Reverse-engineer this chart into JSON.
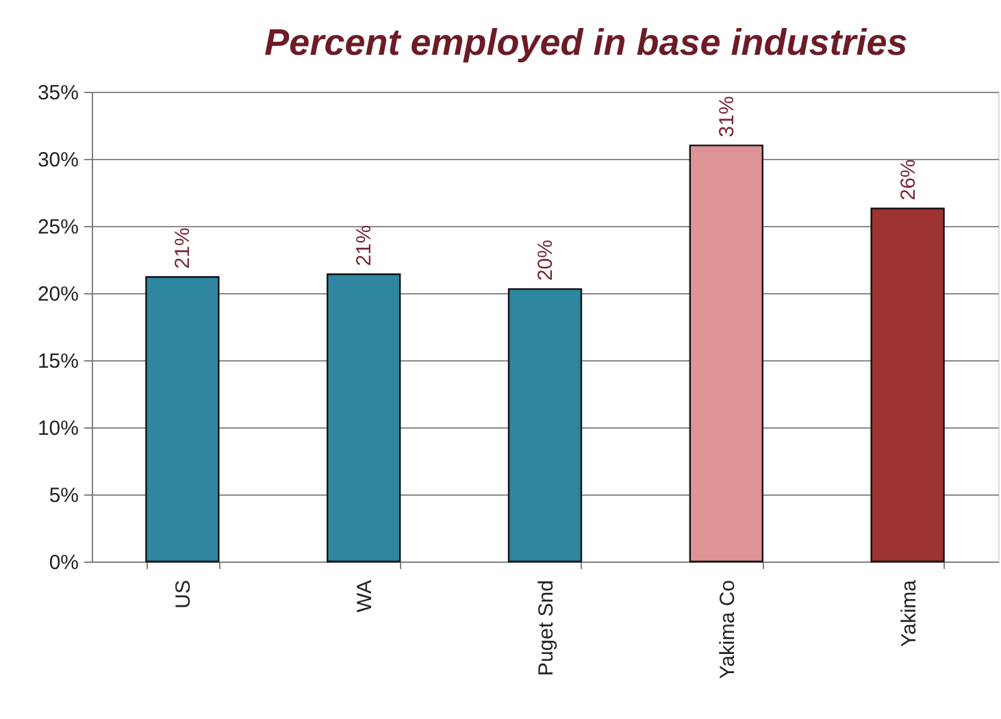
{
  "chart_data": {
    "type": "bar",
    "title": "Percent employed in base industries",
    "categories": [
      "US",
      "WA",
      "Puget Snd",
      "Yakima Co",
      "Yakima"
    ],
    "values": [
      21.2,
      21.4,
      20.3,
      31.0,
      26.3
    ],
    "colors": [
      "#2e86a0",
      "#2e86a0",
      "#2e86a0",
      "#de9497",
      "#9e3431"
    ],
    "value_labels": [
      "21%",
      "21%",
      "20%",
      "31%",
      "26%"
    ],
    "ylim": [
      0,
      35
    ],
    "yticks": [
      {
        "value": 0,
        "label": "0%"
      },
      {
        "value": 5,
        "label": "5%"
      },
      {
        "value": 10,
        "label": "10%"
      },
      {
        "value": 15,
        "label": "15%"
      },
      {
        "value": 20,
        "label": "20%"
      },
      {
        "value": 25,
        "label": "25%"
      },
      {
        "value": 30,
        "label": "30%"
      },
      {
        "value": 35,
        "label": "35%"
      }
    ],
    "grid": "y"
  }
}
